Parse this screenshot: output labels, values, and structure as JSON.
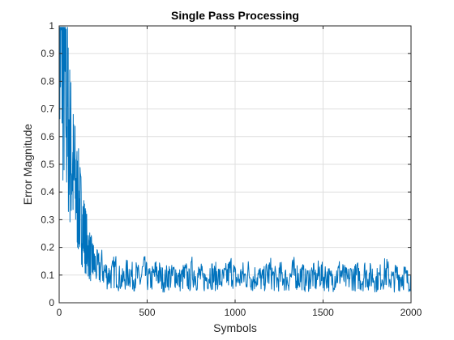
{
  "chart_data": {
    "type": "line",
    "title": "Single Pass Processing",
    "xlabel": "Symbols",
    "ylabel": "Error Magnitude",
    "xlim": [
      0,
      2000
    ],
    "ylim": [
      0,
      1
    ],
    "xticks": [
      0,
      500,
      1000,
      1500,
      2000
    ],
    "yticks": [
      0,
      0.1,
      0.2,
      0.3,
      0.4,
      0.5,
      0.6,
      0.7,
      0.8,
      0.9,
      1
    ],
    "xtick_labels": [
      "0",
      "500",
      "1000",
      "1500",
      "2000"
    ],
    "ytick_labels": [
      "0",
      "0.1",
      "0.2",
      "0.3",
      "0.4",
      "0.5",
      "0.6",
      "0.7",
      "0.8",
      "0.9",
      "1"
    ],
    "grid": true,
    "series": [
      {
        "color": "#0072BD",
        "x": [
          0,
          10,
          20,
          30,
          40,
          50,
          60,
          70,
          80,
          90,
          100,
          110,
          120,
          130,
          140,
          150,
          160,
          170,
          180,
          190,
          200,
          220,
          240,
          260,
          280,
          300,
          320,
          340,
          360,
          380,
          400,
          420,
          440,
          460,
          480,
          500,
          520,
          540,
          560,
          580,
          600,
          620,
          640,
          660,
          680,
          700,
          720,
          740,
          760,
          780,
          800,
          820,
          840,
          860,
          880,
          900,
          920,
          940,
          960,
          980,
          1000,
          1020,
          1040,
          1060,
          1080,
          1100,
          1120,
          1140,
          1160,
          1180,
          1200,
          1220,
          1240,
          1260,
          1280,
          1300,
          1320,
          1340,
          1360,
          1380,
          1400,
          1420,
          1440,
          1460,
          1480,
          1500,
          1520,
          1540,
          1560,
          1580,
          1600,
          1620,
          1640,
          1660,
          1680,
          1700,
          1720,
          1740,
          1760,
          1780,
          1800,
          1820,
          1840,
          1860,
          1880,
          1900,
          1920,
          1940,
          1960,
          1980,
          2000
        ],
        "y": [
          0.99,
          0.95,
          0.88,
          0.8,
          0.72,
          0.66,
          0.58,
          0.52,
          0.47,
          0.43,
          0.39,
          0.36,
          0.33,
          0.29,
          0.26,
          0.23,
          0.2,
          0.18,
          0.16,
          0.15,
          0.14,
          0.12,
          0.13,
          0.11,
          0.1,
          0.1,
          0.12,
          0.09,
          0.08,
          0.1,
          0.11,
          0.09,
          0.1,
          0.08,
          0.12,
          0.09,
          0.08,
          0.1,
          0.11,
          0.09,
          0.08,
          0.1,
          0.09,
          0.11,
          0.08,
          0.09,
          0.1,
          0.08,
          0.12,
          0.09,
          0.1,
          0.08,
          0.09,
          0.11,
          0.09,
          0.1,
          0.08,
          0.09,
          0.1,
          0.12,
          0.09,
          0.08,
          0.1,
          0.09,
          0.11,
          0.08,
          0.1,
          0.09,
          0.08,
          0.1,
          0.11,
          0.09,
          0.08,
          0.1,
          0.09,
          0.08,
          0.1,
          0.11,
          0.09,
          0.1,
          0.08,
          0.09,
          0.1,
          0.08,
          0.11,
          0.09,
          0.1,
          0.08,
          0.09,
          0.1,
          0.11,
          0.09,
          0.08,
          0.1,
          0.09,
          0.1,
          0.08,
          0.11,
          0.09,
          0.1,
          0.08,
          0.09,
          0.1,
          0.11,
          0.09,
          0.08,
          0.1,
          0.09,
          0.1,
          0.08,
          0.09
        ]
      }
    ]
  }
}
